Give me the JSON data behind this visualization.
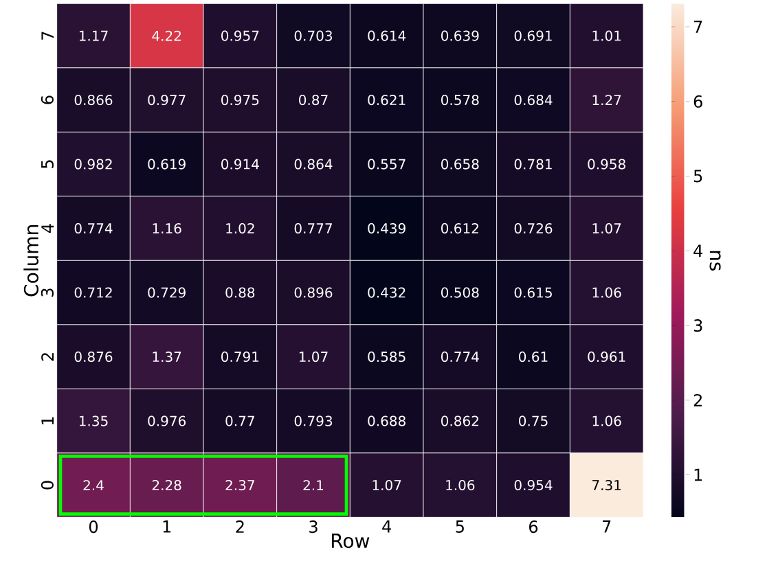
{
  "chart_data": {
    "type": "heatmap",
    "xlabel": "Row",
    "ylabel": "Column",
    "clabel": "ns",
    "categories": [
      "0",
      "1",
      "2",
      "3",
      "4",
      "5",
      "6",
      "7"
    ],
    "y_categories": [
      "7",
      "6",
      "5",
      "4",
      "3",
      "2",
      "1",
      "0"
    ],
    "cells": [
      [
        1.17,
        4.22,
        0.957,
        0.703,
        0.614,
        0.639,
        0.691,
        1.01
      ],
      [
        0.866,
        0.977,
        0.975,
        0.87,
        0.621,
        0.578,
        0.684,
        1.27
      ],
      [
        0.982,
        0.619,
        0.914,
        0.864,
        0.557,
        0.658,
        0.781,
        0.958
      ],
      [
        0.774,
        1.16,
        1.02,
        0.777,
        0.439,
        0.612,
        0.726,
        1.07
      ],
      [
        0.712,
        0.729,
        0.88,
        0.896,
        0.432,
        0.508,
        0.615,
        1.06
      ],
      [
        0.876,
        1.37,
        0.791,
        1.07,
        0.585,
        0.774,
        0.61,
        0.961
      ],
      [
        1.35,
        0.976,
        0.77,
        0.793,
        0.688,
        0.862,
        0.75,
        1.06
      ],
      [
        2.4,
        2.28,
        2.37,
        2.1,
        1.07,
        1.06,
        0.954,
        7.31
      ]
    ],
    "data_labels": true,
    "clim": [
      0.432,
      7.31
    ],
    "cticks": [
      1,
      2,
      3,
      4,
      5,
      6,
      7
    ]
  }
}
